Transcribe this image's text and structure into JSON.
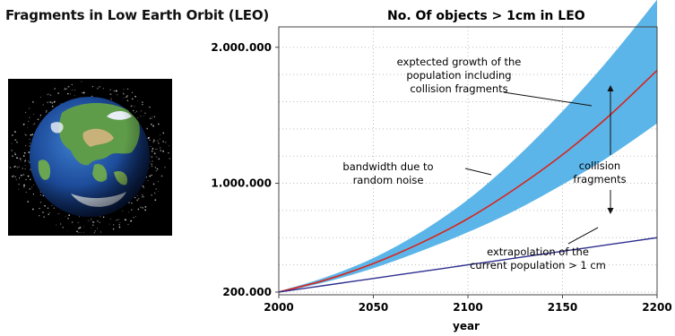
{
  "figure_title": "Fragments in Low Earth Orbit (LEO)",
  "colors": {
    "band_fill": "#5cb5e8",
    "expected_line": "#d8241c",
    "extrapolation_line": "#2f2f8f",
    "grid": "#bdbdbd",
    "axis": "#444444",
    "space_background": "#000000"
  },
  "image": {
    "icon": "earth-with-debris-image",
    "description_free": true
  },
  "chart_data": {
    "type": "line",
    "title": "No. Of objects > 1cm in LEO",
    "xlabel": "year",
    "ylabel": "",
    "xlim": [
      2000,
      2200
    ],
    "ylim": [
      180000,
      2150000
    ],
    "x_ticks": [
      2000,
      2050,
      2100,
      2150,
      2200
    ],
    "y_ticks": [
      200000,
      1000000,
      2000000
    ],
    "x_tick_labels": [
      "2000",
      "2050",
      "2100",
      "2150",
      "2200"
    ],
    "y_tick_labels": [
      "200.000",
      "1.000.000",
      "2.000.000"
    ],
    "grid": true,
    "x": [
      2000,
      2025,
      2050,
      2075,
      2100,
      2125,
      2150,
      2175,
      2200
    ],
    "series": [
      {
        "key": "expected",
        "values": [
          200000,
          290000,
          410000,
          560000,
          740000,
          960000,
          1210000,
          1500000,
          1830000
        ]
      },
      {
        "key": "band_upper",
        "values": [
          205000,
          310000,
          450000,
          640000,
          880000,
          1180000,
          1530000,
          1920000,
          2350000
        ]
      },
      {
        "key": "band_lower",
        "values": [
          195000,
          275000,
          375000,
          500000,
          640000,
          800000,
          990000,
          1200000,
          1440000
        ]
      },
      {
        "key": "extrapolation",
        "values": [
          200000,
          250000,
          300000,
          350000,
          400000,
          450000,
          500000,
          550000,
          600000
        ]
      }
    ],
    "annotations": {
      "expected_growth": [
        "exptected growth of the",
        "population including",
        "collision fragments"
      ],
      "bandwidth": [
        "bandwidth due to",
        "random noise"
      ],
      "collision": [
        "collision",
        "fragments"
      ],
      "extrapolation": [
        "extrapolation of the",
        "current population > 1 cm"
      ]
    }
  }
}
